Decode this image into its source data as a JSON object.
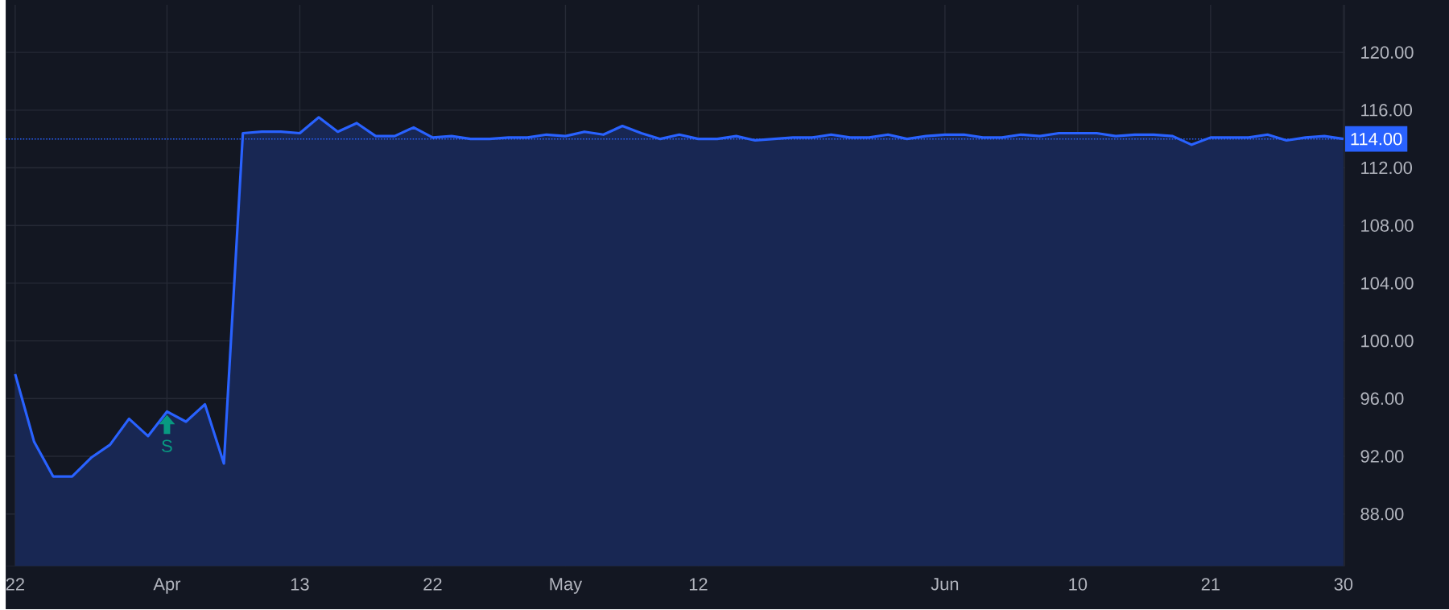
{
  "chart_data": {
    "type": "area",
    "categories": [
      "22",
      null,
      null,
      null,
      null,
      null,
      null,
      null,
      "Apr",
      null,
      null,
      null,
      null,
      null,
      null,
      "13",
      null,
      null,
      null,
      null,
      null,
      null,
      "22",
      null,
      null,
      null,
      null,
      null,
      null,
      "May",
      null,
      null,
      null,
      null,
      null,
      null,
      "12",
      null,
      null,
      null,
      null,
      null,
      null,
      null,
      null,
      null,
      null,
      null,
      null,
      "Jun",
      null,
      null,
      null,
      null,
      null,
      null,
      "10",
      null,
      null,
      null,
      null,
      null,
      null,
      "21",
      null,
      null,
      null,
      null,
      null,
      null,
      "30"
    ],
    "series": [
      {
        "color": "#2962ff",
        "values": [
          97.7,
          93.0,
          90.6,
          90.6,
          91.9,
          92.8,
          94.6,
          93.4,
          95.1,
          94.4,
          95.6,
          91.5,
          114.4,
          114.5,
          114.5,
          114.4,
          115.5,
          114.5,
          115.1,
          114.2,
          114.2,
          114.8,
          114.1,
          114.2,
          114.0,
          114.0,
          114.1,
          114.1,
          114.3,
          114.2,
          114.5,
          114.3,
          114.9,
          114.4,
          114.0,
          114.3,
          114.0,
          114.0,
          114.2,
          113.9,
          114.0,
          114.1,
          114.1,
          114.3,
          114.1,
          114.1,
          114.3,
          114.0,
          114.2,
          114.3,
          114.3,
          114.1,
          114.1,
          114.3,
          114.2,
          114.4,
          114.4,
          114.4,
          114.2,
          114.3,
          114.3,
          114.2,
          113.6,
          114.1,
          114.1,
          114.1,
          114.3,
          113.9,
          114.1,
          114.2,
          114.0
        ]
      }
    ],
    "ylim": [
      84.4,
      123.3
    ],
    "yticks": [
      {
        "value": 88,
        "label": "88.00"
      },
      {
        "value": 92,
        "label": "92.00"
      },
      {
        "value": 96,
        "label": "96.00"
      },
      {
        "value": 100,
        "label": "100.00"
      },
      {
        "value": 104,
        "label": "104.00"
      },
      {
        "value": 108,
        "label": "108.00"
      },
      {
        "value": 112,
        "label": "112.00"
      },
      {
        "value": 116,
        "label": "116.00"
      },
      {
        "value": 120,
        "label": "120.00"
      }
    ],
    "grid": true,
    "ref_lines": [
      {
        "axis": "y",
        "value": 114,
        "label": "114.00",
        "color": "#2962ff",
        "line_style": "dotted"
      }
    ],
    "annotations": [
      {
        "text": "S",
        "x": "Apr",
        "y": 95.1
      }
    ]
  }
}
